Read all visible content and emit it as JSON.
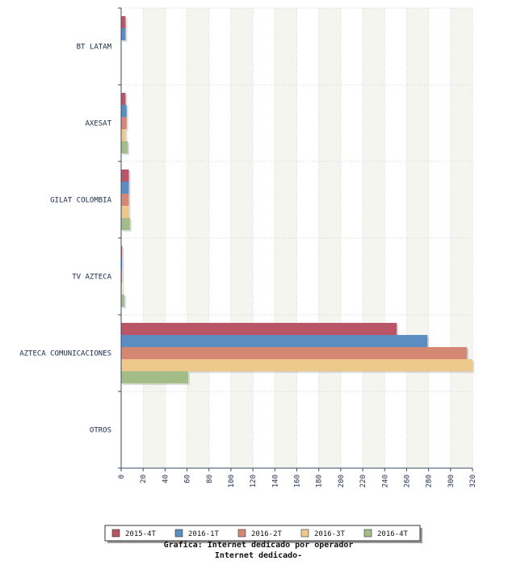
{
  "chart_data": {
    "type": "bar",
    "orientation": "horizontal",
    "categories": [
      "BT LATAM",
      "AXESAT",
      "GILAT COLOMBIA",
      "TV AZTECA",
      "AZTECA COMUNICACIONES",
      "OTROS"
    ],
    "series": [
      {
        "name": "2015-4T",
        "color": "#b95566",
        "values": [
          4,
          4,
          7,
          1,
          251,
          0
        ]
      },
      {
        "name": "2016-1T",
        "color": "#5b8dc0",
        "values": [
          4,
          5,
          7,
          1,
          279,
          0
        ]
      },
      {
        "name": "2016-2T",
        "color": "#d48874",
        "values": [
          0,
          5,
          7,
          1,
          315,
          0
        ]
      },
      {
        "name": "2016-3T",
        "color": "#ecc98a",
        "values": [
          0,
          4,
          7,
          1,
          320,
          0
        ]
      },
      {
        "name": "2016-4T",
        "color": "#a4bd88",
        "values": [
          0,
          6,
          8,
          3,
          61,
          0
        ]
      }
    ],
    "xlim": [
      0,
      320
    ],
    "ticks": [
      0,
      20,
      40,
      60,
      80,
      100,
      120,
      140,
      160,
      180,
      200,
      220,
      240,
      260,
      280,
      300,
      320
    ],
    "grid": true,
    "legend_position": "bottom",
    "title": "Grafica: Internet dedicado por operador",
    "subtitle": "Internet dedicado-"
  }
}
